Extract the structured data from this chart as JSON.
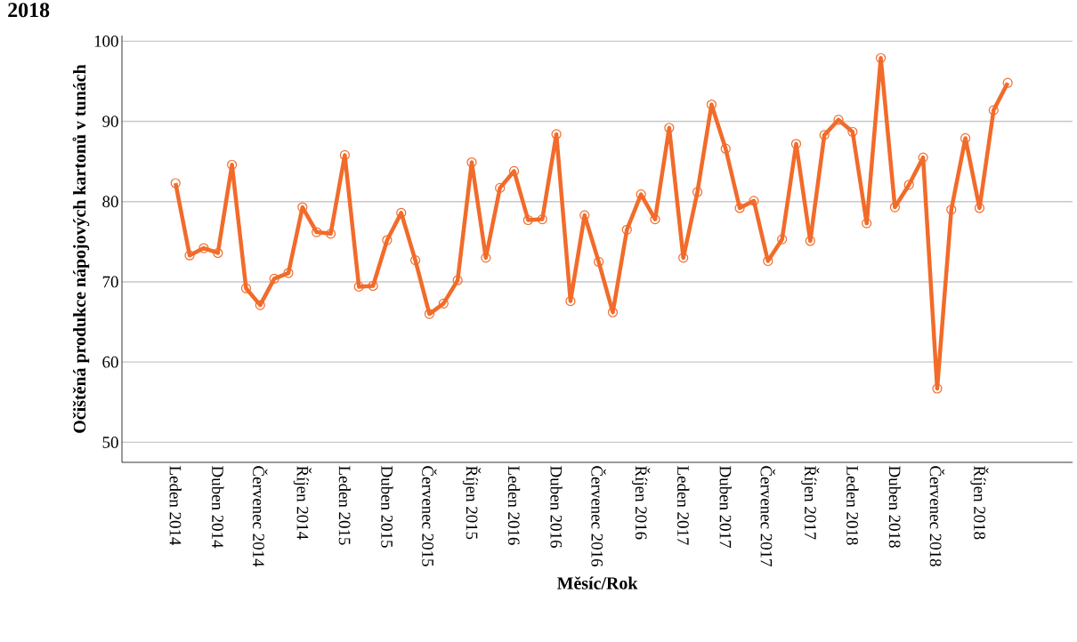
{
  "chart_data": {
    "type": "line",
    "title": "2018",
    "xlabel": "Měsíc/Rok",
    "ylabel": "Očištěná produkce nápojových kartonů v tunách",
    "categories": [
      "Leden 2014",
      null,
      null,
      "Duben 2014",
      null,
      null,
      "Červenec 2014",
      null,
      null,
      "Říjen 2014",
      null,
      null,
      "Leden 2015",
      null,
      null,
      "Duben 2015",
      null,
      null,
      "Červenec 2015",
      null,
      null,
      "Říjen 2015",
      null,
      null,
      "Leden 2016",
      null,
      null,
      "Duben 2016",
      null,
      null,
      "Červenec 2016",
      null,
      null,
      "Říjen 2016",
      null,
      null,
      "Leden 2017",
      null,
      null,
      "Duben 2017",
      null,
      null,
      "Červenec 2017",
      null,
      null,
      "Říjen 2017",
      null,
      null,
      "Leden 2018",
      null,
      null,
      "Duben 2018",
      null,
      null,
      "Červenec 2018",
      null,
      null,
      "Říjen 2018",
      null,
      null
    ],
    "values": [
      82.3,
      73.3,
      74.2,
      73.6,
      84.6,
      69.2,
      67.1,
      70.4,
      71.1,
      79.3,
      76.2,
      76.0,
      85.8,
      69.4,
      69.5,
      75.2,
      78.6,
      72.7,
      66.0,
      67.3,
      70.2,
      84.9,
      73.0,
      81.7,
      83.8,
      77.7,
      77.8,
      88.4,
      67.6,
      78.3,
      72.5,
      66.2,
      76.5,
      80.9,
      77.8,
      89.2,
      73.0,
      81.2,
      92.1,
      86.6,
      79.2,
      80.1,
      72.6,
      75.3,
      87.2,
      75.1,
      88.3,
      90.2,
      88.7,
      77.3,
      97.9,
      79.3,
      82.1,
      85.5,
      56.7,
      79.0,
      87.9,
      79.2,
      91.4,
      94.8
    ],
    "color": "#f26b2a",
    "ylim": [
      47.5,
      100.7
    ],
    "yticks": [
      50,
      60,
      70,
      80,
      90,
      100
    ],
    "grid": "y",
    "marker": "circle",
    "line_style": "solid"
  }
}
